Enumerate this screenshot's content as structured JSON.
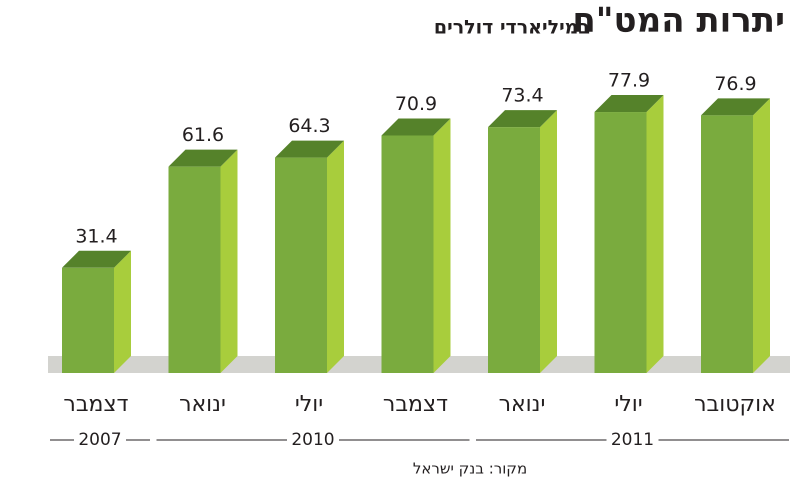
{
  "chart_data": {
    "type": "bar",
    "title": "יתרות המט\"ח",
    "subtitle": "במיליארדי דולרים",
    "categories": [
      "דצמבר",
      "ינואר",
      "יולי",
      "דצמבר",
      "ינואר",
      "יולי",
      "אוקטובר"
    ],
    "years": [
      "2007",
      "2010",
      "2010",
      "2010",
      "2011",
      "2011",
      "2011"
    ],
    "values": [
      31.4,
      61.6,
      64.3,
      70.9,
      73.4,
      77.9,
      76.9
    ],
    "color": "#7aab3e",
    "source": "מקור: בנק ישראל"
  }
}
